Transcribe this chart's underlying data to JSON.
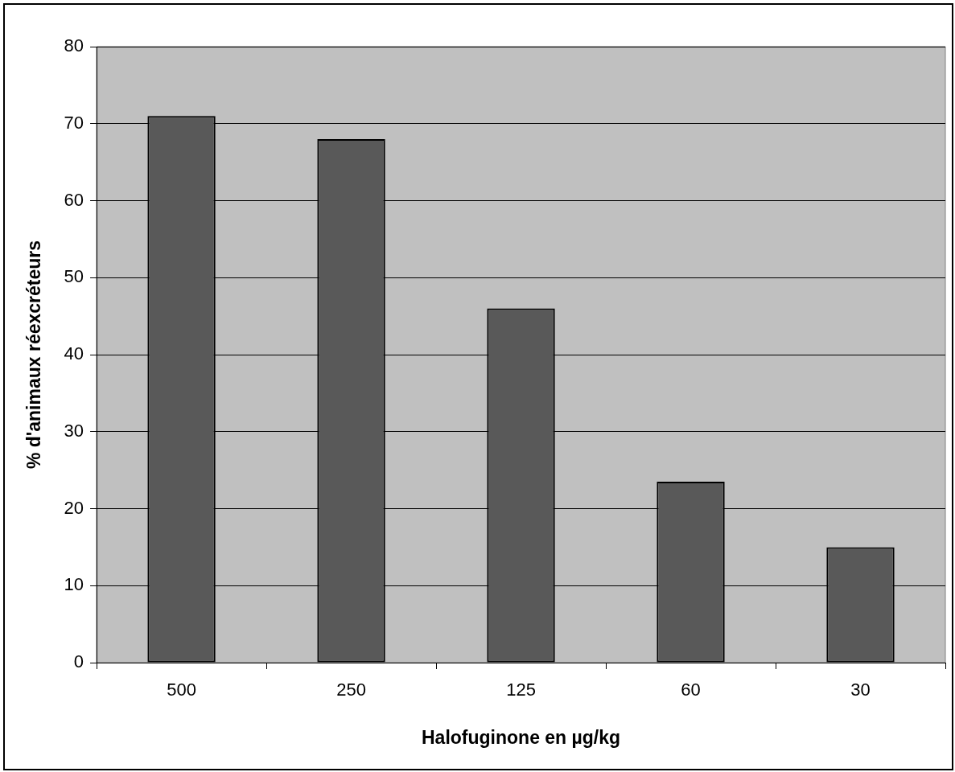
{
  "chart_data": {
    "type": "bar",
    "xlabel": "Halofuginone en µg/kg",
    "ylabel": "% d'animaux réexcréteurs",
    "categories": [
      "500",
      "250",
      "125",
      "60",
      "30"
    ],
    "values": [
      71,
      68,
      46,
      23.5,
      15
    ],
    "color": "#595959",
    "ylim": [
      0,
      80
    ],
    "yticks": [
      0,
      10,
      20,
      30,
      40,
      50,
      60,
      70,
      80
    ],
    "grid": "y",
    "legend": false
  }
}
